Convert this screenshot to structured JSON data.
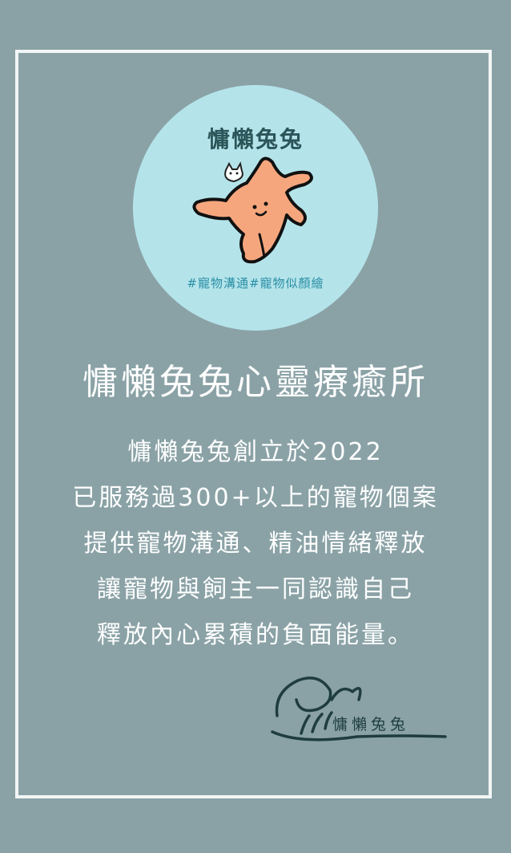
{
  "logo": {
    "title": "慵懶兔兔",
    "tags": "#寵物溝通#寵物似顏繪",
    "icons": [
      "rabbit-illustration",
      "cat-face-icon"
    ],
    "colors": {
      "circle": "#b4e4ea",
      "rabbit": "#f6a67d",
      "title": "#2b5558",
      "tags": "#2c8fa6"
    }
  },
  "heading": "慵懶兔兔心靈療癒所",
  "body_lines": [
    "慵懶兔兔創立於2022",
    "已服務過300+以上的寵物個案",
    "提供寵物溝通、精油情緒釋放",
    "讓寵物與飼主一同認識自己",
    "釋放內心累積的負面能量。"
  ],
  "signature": {
    "text": "慵懶兔兔"
  },
  "colors": {
    "background": "#8aa2a6",
    "frame": "#f3f6f6",
    "text": "#ffffff",
    "signature": "#1f3d40"
  }
}
